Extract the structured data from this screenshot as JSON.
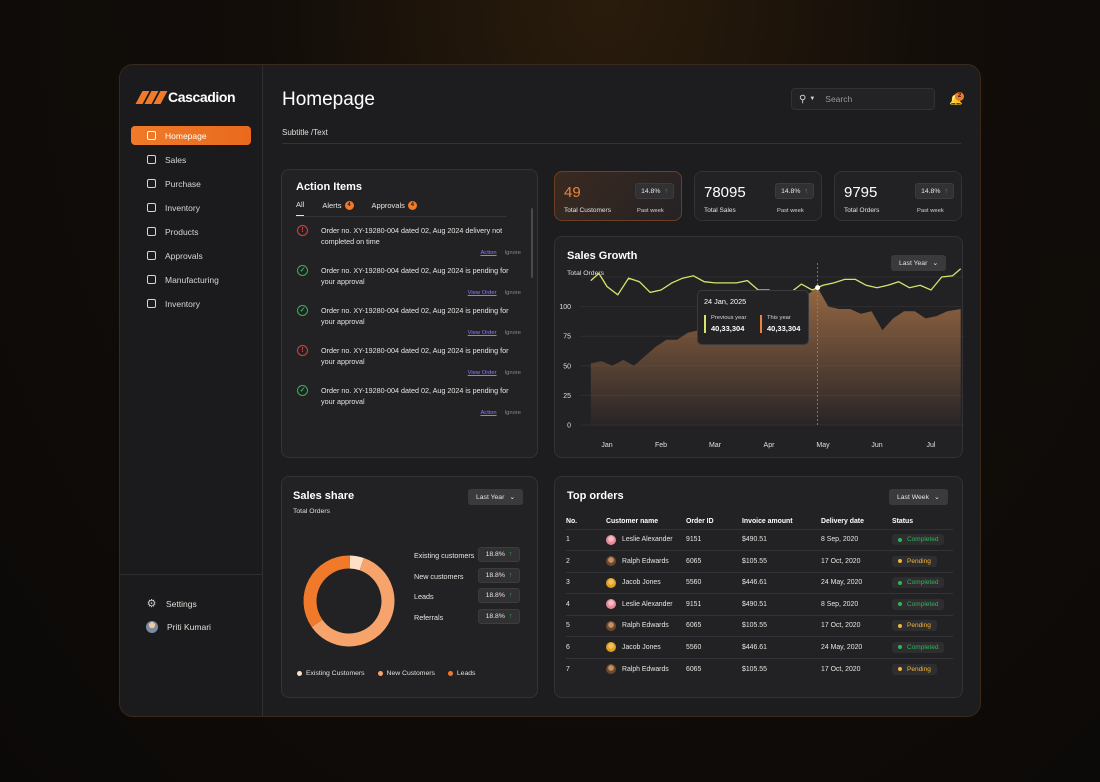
{
  "brand": {
    "name": "Cascadion"
  },
  "sidebar": {
    "items": [
      {
        "label": "Homepage",
        "icon": "layout-icon",
        "active": true
      },
      {
        "label": "Sales",
        "icon": "inbox-icon"
      },
      {
        "label": "Purchase",
        "icon": "clipboard-icon"
      },
      {
        "label": "Inventory",
        "icon": "chart-icon"
      },
      {
        "label": "Products",
        "icon": "archive-icon"
      },
      {
        "label": "Approvals",
        "icon": "check-circle-icon"
      },
      {
        "label": "Manufacturing",
        "icon": "factory-icon"
      },
      {
        "label": "Inventory",
        "icon": "chart-icon"
      }
    ],
    "settings_label": "Settings",
    "user_name": "Priti Kumari"
  },
  "header": {
    "title": "Homepage",
    "subtitle": "Subtitle /Text",
    "search_placeholder": "Search",
    "notification_count": "2"
  },
  "action_items": {
    "title": "Action Items",
    "tabs": [
      {
        "label": "All",
        "active": true
      },
      {
        "label": "Alerts",
        "badge": "4"
      },
      {
        "label": "Approvals",
        "badge": "4"
      }
    ],
    "items": [
      {
        "type": "error",
        "text": "Order no. XY-19280-004 dated 02, Aug 2024 delivery not completed on time",
        "link": "Action",
        "ignore": "Ignore"
      },
      {
        "type": "ok",
        "text": "Order no. XY-19280-004 dated 02, Aug 2024 is pending for your approval",
        "link": "View Order",
        "ignore": "Ignore"
      },
      {
        "type": "ok",
        "text": "Order no. XY-19280-004 dated 02, Aug 2024 is pending for your approval",
        "link": "View Order",
        "ignore": "Ignore"
      },
      {
        "type": "error",
        "text": "Order no. XY-19280-004 dated 02, Aug 2024 is pending for your approval",
        "link": "View Order",
        "ignore": "Ignore"
      },
      {
        "type": "ok",
        "text": "Order no. XY-19280-004 dated 02, Aug 2024 is pending for your approval",
        "link": "Action",
        "ignore": "Ignore"
      }
    ]
  },
  "stats": [
    {
      "value": "49",
      "label": "Total Customers",
      "change": "14.8%",
      "period": "Past week",
      "highlight": true
    },
    {
      "value": "78095",
      "label": "Total Sales",
      "change": "14.8%",
      "period": "Past week"
    },
    {
      "value": "9795",
      "label": "Total Orders",
      "change": "14.8%",
      "period": "Past week"
    }
  ],
  "sales_growth": {
    "title": "Sales Growth",
    "subtitle": "Total Orders",
    "range_label": "Last Year",
    "tooltip": {
      "date": "24 Jan, 2025",
      "prev_label": "Previous year",
      "prev_value": "40,33,304",
      "this_label": "This year",
      "this_value": "40,33,304"
    }
  },
  "sales_share": {
    "title": "Sales share",
    "subtitle": "Total Orders",
    "range_label": "Last Year",
    "rows": [
      {
        "label": "Existing customers",
        "value": "18.8%"
      },
      {
        "label": "New customers",
        "value": "18.8%"
      },
      {
        "label": "Leads",
        "value": "18.8%"
      },
      {
        "label": "Referrals",
        "value": "18.8%"
      }
    ],
    "legend": [
      {
        "label": "Existing Customers",
        "color": "#fde0c6"
      },
      {
        "label": "New Customers",
        "color": "#f6a46b"
      },
      {
        "label": "Leads",
        "color": "#f07a2a"
      }
    ]
  },
  "top_orders": {
    "title": "Top orders",
    "range_label": "Last Week",
    "columns": [
      "No.",
      "Customer name",
      "Order ID",
      "Invoice amount",
      "Delivery date",
      "Status"
    ],
    "rows": [
      {
        "no": "1",
        "name": "Leslie Alexander",
        "order": "9151",
        "amount": "$490.51",
        "date": "8 Sep, 2020",
        "status": "Completed"
      },
      {
        "no": "2",
        "name": "Ralph Edwards",
        "order": "6065",
        "amount": "$105.55",
        "date": "17 Oct, 2020",
        "status": "Pending"
      },
      {
        "no": "3",
        "name": "Jacob Jones",
        "order": "5560",
        "amount": "$446.61",
        "date": "24 May, 2020",
        "status": "Completed"
      },
      {
        "no": "4",
        "name": "Leslie Alexander",
        "order": "9151",
        "amount": "$490.51",
        "date": "8 Sep, 2020",
        "status": "Completed"
      },
      {
        "no": "5",
        "name": "Ralph Edwards",
        "order": "6065",
        "amount": "$105.55",
        "date": "17 Oct, 2020",
        "status": "Pending"
      },
      {
        "no": "6",
        "name": "Jacob Jones",
        "order": "5560",
        "amount": "$446.61",
        "date": "24 May, 2020",
        "status": "Completed"
      },
      {
        "no": "7",
        "name": "Ralph Edwards",
        "order": "6065",
        "amount": "$105.55",
        "date": "17 Oct, 2020",
        "status": "Pending"
      }
    ]
  },
  "chart_data": [
    {
      "type": "area",
      "x": [
        "Jan",
        "Feb",
        "Mar",
        "Apr",
        "May",
        "Jun",
        "Jul"
      ],
      "yticks": [
        0,
        25,
        50,
        75,
        100
      ],
      "ylim": [
        0,
        125
      ],
      "series": [
        {
          "name": "Previous year",
          "color": "#d8e36a",
          "x": [
            0.7,
            0.85,
            1.0,
            1.2,
            1.4,
            1.6,
            1.8,
            2.0,
            2.2,
            2.4,
            2.6,
            2.8,
            3.0,
            3.2,
            3.4,
            3.6,
            3.8,
            4.0,
            4.2,
            4.4,
            4.6,
            4.8,
            5.0,
            5.2,
            5.4,
            5.6,
            5.8,
            6.0,
            6.2,
            6.4,
            6.6,
            6.8,
            7.0,
            7.2,
            7.4,
            7.55
          ],
          "values": [
            122,
            128,
            117,
            110,
            124,
            121,
            112,
            114,
            120,
            124,
            126,
            121,
            120,
            120,
            120,
            122,
            114,
            114,
            107,
            112,
            119,
            114,
            118,
            120,
            123,
            123,
            118,
            116,
            118,
            121,
            116,
            118,
            114,
            125,
            126,
            132
          ]
        },
        {
          "name": "This year",
          "color": "#9a6a44",
          "x": [
            0.7,
            0.9,
            1.1,
            1.3,
            1.5,
            1.7,
            1.9,
            2.1,
            2.3,
            2.5,
            2.7,
            2.9,
            3.1,
            3.3,
            3.5,
            3.7,
            3.9,
            4.1,
            4.3,
            4.5,
            4.7,
            4.9,
            5.1,
            5.3,
            5.5,
            5.7,
            5.9,
            6.1,
            6.3,
            6.5,
            6.7,
            6.9,
            7.1,
            7.3,
            7.55
          ],
          "values": [
            52,
            54,
            50,
            55,
            50,
            58,
            66,
            72,
            72,
            78,
            80,
            86,
            88,
            97,
            98,
            102,
            100,
            104,
            104,
            106,
            110,
            116,
            100,
            98,
            98,
            94,
            96,
            80,
            90,
            96,
            96,
            90,
            92,
            96,
            98
          ]
        }
      ]
    },
    {
      "type": "pie",
      "categories": [
        "Existing Customers",
        "New Customers",
        "Leads"
      ],
      "values": [
        5,
        60,
        35
      ]
    }
  ]
}
